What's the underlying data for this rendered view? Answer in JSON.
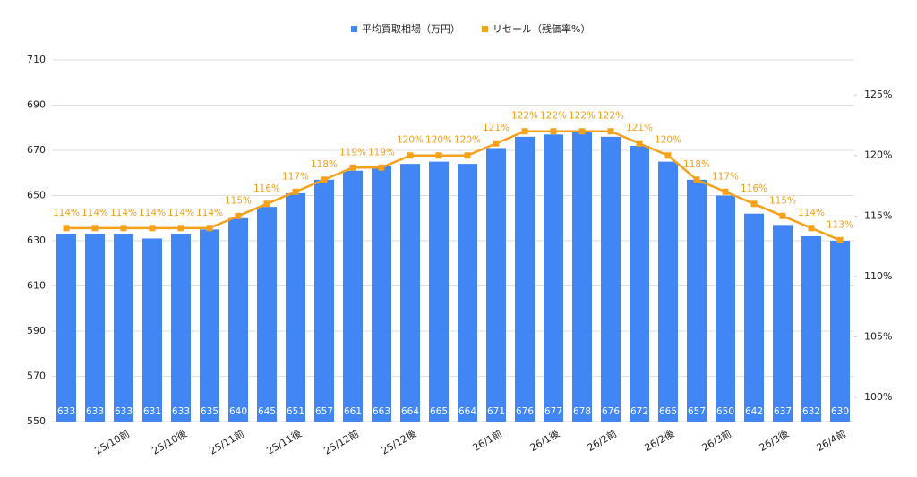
{
  "chart_data": {
    "type": "bar_line",
    "categories": [
      null,
      null,
      "25/10前",
      null,
      "25/10後",
      null,
      "25/11前",
      null,
      "25/11後",
      null,
      "25/12前",
      null,
      "25/12後",
      null,
      null,
      "26/1前",
      null,
      "26/1後",
      null,
      "26/2前",
      null,
      "26/2後",
      null,
      "26/3前",
      null,
      "26/3後",
      null,
      "26/4前"
    ],
    "series": [
      {
        "name": "平均買取相場（万円）",
        "color": "#4285f4",
        "type": "bar",
        "values": [
          633,
          633,
          633,
          631,
          633,
          635,
          640,
          645,
          651,
          657,
          661,
          663,
          664,
          665,
          664,
          671,
          676,
          677,
          678,
          676,
          672,
          665,
          657,
          650,
          642,
          637,
          632,
          630
        ]
      },
      {
        "name": "リセール（残価率%）",
        "color": "#f5a11c",
        "type": "line",
        "axis": "y2",
        "values": [
          114,
          114,
          114,
          114,
          114,
          114,
          115,
          116,
          117,
          118,
          119,
          119,
          120,
          120,
          120,
          121,
          122,
          122,
          122,
          122,
          121,
          120,
          118,
          117,
          116,
          115,
          114,
          113
        ],
        "value_labels": [
          "114%",
          "114%",
          "114%",
          "114%",
          "114%",
          "114%",
          "115%",
          "116%",
          "117%",
          "118%",
          "119%",
          "119%",
          "120%",
          "120%",
          "120%",
          "121%",
          "122%",
          "122%",
          "122%",
          "122%",
          "121%",
          "120%",
          "118%",
          "117%",
          "116%",
          "115%",
          "114%",
          "113%"
        ]
      }
    ],
    "ylim": [
      550,
      710
    ],
    "yticks": [
      550,
      570,
      590,
      610,
      630,
      650,
      670,
      690,
      710
    ],
    "y2lim": [
      98,
      127.9
    ],
    "y2ticks": [
      {
        "value": 100,
        "label": "100%"
      },
      {
        "value": 105,
        "label": "105%"
      },
      {
        "value": 110,
        "label": "110%"
      },
      {
        "value": 115,
        "label": "115%"
      },
      {
        "value": 120,
        "label": "120%"
      },
      {
        "value": 125,
        "label": "125%"
      }
    ],
    "grid": true,
    "legend": "top"
  }
}
